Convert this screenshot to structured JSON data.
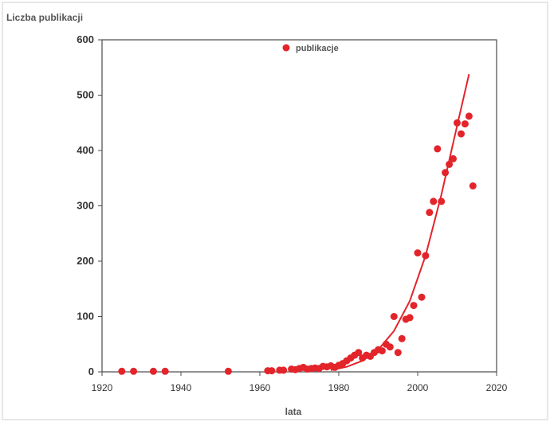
{
  "chart_data": {
    "type": "scatter",
    "title": "",
    "xlabel": "lata",
    "ylabel": "Liczba publikacji",
    "xlim": [
      1920,
      2020
    ],
    "ylim": [
      0,
      600
    ],
    "xticks": [
      1920,
      1940,
      1960,
      1980,
      2000,
      2020
    ],
    "yticks": [
      0,
      100,
      200,
      300,
      400,
      500,
      600
    ],
    "grid": false,
    "legend": "top-center",
    "series": [
      {
        "name": "publikacje",
        "type": "scatter",
        "color": "#e3242b",
        "points": [
          [
            1925,
            1
          ],
          [
            1928,
            1
          ],
          [
            1933,
            1
          ],
          [
            1936,
            1
          ],
          [
            1952,
            1
          ],
          [
            1962,
            2
          ],
          [
            1963,
            2
          ],
          [
            1965,
            3
          ],
          [
            1966,
            3
          ],
          [
            1968,
            5
          ],
          [
            1969,
            4
          ],
          [
            1970,
            6
          ],
          [
            1971,
            8
          ],
          [
            1972,
            5
          ],
          [
            1973,
            6
          ],
          [
            1974,
            7
          ],
          [
            1975,
            6
          ],
          [
            1976,
            10
          ],
          [
            1977,
            9
          ],
          [
            1978,
            11
          ],
          [
            1979,
            8
          ],
          [
            1980,
            12
          ],
          [
            1981,
            15
          ],
          [
            1982,
            20
          ],
          [
            1983,
            25
          ],
          [
            1984,
            30
          ],
          [
            1985,
            35
          ],
          [
            1986,
            25
          ],
          [
            1987,
            30
          ],
          [
            1988,
            28
          ],
          [
            1989,
            35
          ],
          [
            1990,
            40
          ],
          [
            1991,
            38
          ],
          [
            1992,
            50
          ],
          [
            1993,
            45
          ],
          [
            1994,
            100
          ],
          [
            1995,
            35
          ],
          [
            1996,
            60
          ],
          [
            1997,
            95
          ],
          [
            1998,
            98
          ],
          [
            1999,
            120
          ],
          [
            2000,
            215
          ],
          [
            2001,
            135
          ],
          [
            2002,
            210
          ],
          [
            2003,
            288
          ],
          [
            2004,
            308
          ],
          [
            2005,
            403
          ],
          [
            2006,
            308
          ],
          [
            2007,
            360
          ],
          [
            2008,
            375
          ],
          [
            2009,
            385
          ],
          [
            2010,
            450
          ],
          [
            2011,
            430
          ],
          [
            2012,
            448
          ],
          [
            2013,
            462
          ],
          [
            2014,
            336
          ]
        ]
      },
      {
        "name": "",
        "type": "line",
        "color": "#e3242b",
        "points": [
          [
            1978,
            3
          ],
          [
            1982,
            9
          ],
          [
            1986,
            20
          ],
          [
            1990,
            40
          ],
          [
            1994,
            74
          ],
          [
            1998,
            128
          ],
          [
            2002,
            210
          ],
          [
            2006,
            320
          ],
          [
            2010,
            445
          ],
          [
            2013,
            538
          ]
        ]
      }
    ]
  }
}
